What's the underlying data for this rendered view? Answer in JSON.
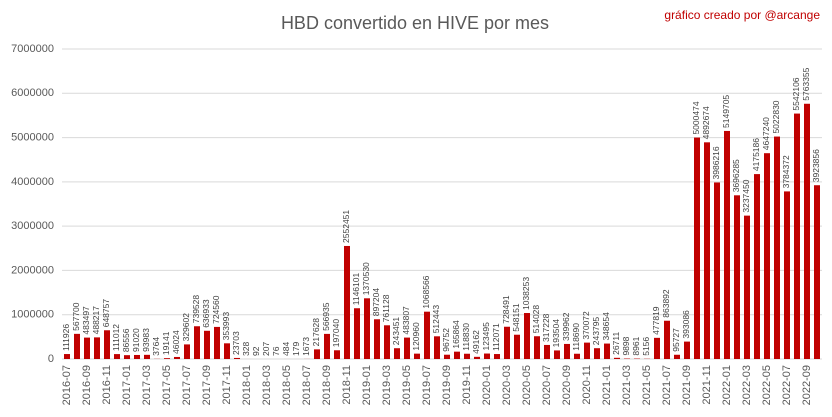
{
  "chart_data": {
    "type": "bar",
    "title": "HBD convertido en HIVE por mes",
    "annotation": "gráfico creado por @arcange",
    "categories": [
      "2016-07",
      null,
      "2016-09",
      null,
      "2016-11",
      null,
      "2017-01",
      null,
      "2017-03",
      null,
      "2017-05",
      null,
      "2017-07",
      null,
      "2017-09",
      null,
      "2017-11",
      null,
      "2018-01",
      null,
      "2018-03",
      null,
      "2018-05",
      null,
      "2018-07",
      null,
      "2018-09",
      null,
      "2018-11",
      null,
      "2019-01",
      null,
      "2019-03",
      null,
      "2019-05",
      null,
      "2019-07",
      null,
      "2019-09",
      null,
      "2019-11",
      null,
      "2020-01",
      null,
      "2020-03",
      null,
      "2020-05",
      null,
      "2020-07",
      null,
      "2020-09",
      null,
      "2020-11",
      null,
      "2021-01",
      null,
      "2021-03",
      null,
      "2021-05",
      null,
      "2021-07",
      null,
      "2021-09",
      null,
      "2021-11",
      null,
      "2022-01",
      null,
      "2022-03",
      null,
      "2022-05",
      null,
      "2022-07",
      null,
      "2022-09",
      null
    ],
    "values": [
      111926,
      567700,
      483497,
      488217,
      648757,
      111012,
      86556,
      91020,
      93983,
      3764,
      19141,
      46024,
      329602,
      739528,
      636933,
      724560,
      353993,
      23703,
      328,
      92,
      207,
      76,
      484,
      179,
      1673,
      217628,
      566935,
      197040,
      2552451,
      1146101,
      1370530,
      897204,
      761128,
      243451,
      483807,
      120960,
      1068566,
      512443,
      96752,
      165864,
      118830,
      49162,
      123495,
      112071,
      728491,
      548151,
      1038253,
      514028,
      317228,
      193504,
      339962,
      118690,
      370072,
      243795,
      348654,
      26711,
      9898,
      8961,
      5156,
      477819,
      863892,
      95727,
      393086,
      5000474,
      4892674,
      3986216,
      5149705,
      3696285,
      3237450,
      4175186,
      4647240,
      5022830,
      3784372,
      5542106,
      5763355,
      3923856
    ],
    "color": "#c00000",
    "ylim": [
      0,
      7000000
    ],
    "yticks": [
      0,
      1000000,
      2000000,
      3000000,
      4000000,
      5000000,
      6000000,
      7000000
    ],
    "grid": true
  }
}
